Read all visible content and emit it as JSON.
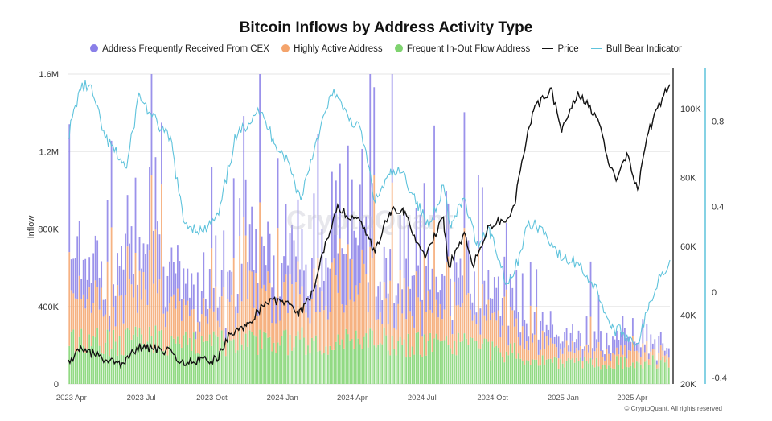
{
  "colors": {
    "cex": "#8a7fe8",
    "active": "#f4a46c",
    "inout": "#7fd36f",
    "price": "#111111",
    "bull_bear": "#5fc3dc",
    "grid": "#e6e6e6"
  },
  "footer": "© CryptoQuant. All rights reserved",
  "watermark": "CryptoQuant",
  "chart_data": {
    "type": "bar",
    "title": "Bitcoin Inflows by Address Activity Type",
    "ylabel": "Inflow",
    "ylim": [
      0,
      1600000
    ],
    "y_ticks": [
      "0",
      "400K",
      "800K",
      "1.2M",
      "1.6M"
    ],
    "price_ticks": [
      "20K",
      "40K",
      "60K",
      "80K",
      "100K"
    ],
    "price_ylim": [
      20000,
      110000
    ],
    "bb_ticks": [
      "-0.4",
      "0",
      "0.4",
      "0.8"
    ],
    "bb_ylim": [
      -0.43,
      1.02
    ],
    "x_ticks": [
      "2023 Apr",
      "2023 Jul",
      "2023 Oct",
      "2024 Jan",
      "2024 Apr",
      "2024 Jul",
      "2024 Oct",
      "2025 Jan",
      "2025 Apr"
    ],
    "x_range": [
      "2023-03-28",
      "2025-05-20"
    ],
    "legend_position": "top",
    "grid": true,
    "series": [
      {
        "name": "Address Frequently Received From CEX",
        "kind": "bar-stack",
        "dates": [
          "2023-04",
          "2023-05",
          "2023-06",
          "2023-07",
          "2023-08",
          "2023-09",
          "2023-10",
          "2023-11",
          "2023-12",
          "2024-01",
          "2024-02",
          "2024-03",
          "2024-04",
          "2024-05",
          "2024-06",
          "2024-07",
          "2024-08",
          "2024-09",
          "2024-10",
          "2024-11",
          "2024-12",
          "2025-01",
          "2025-02",
          "2025-03",
          "2025-04",
          "2025-05"
        ],
        "values": [
          190000,
          180000,
          210000,
          230000,
          160000,
          140000,
          150000,
          190000,
          230000,
          220000,
          200000,
          300000,
          280000,
          250000,
          220000,
          230000,
          200000,
          170000,
          130000,
          90000,
          80000,
          70000,
          70000,
          60000,
          60000,
          50000
        ]
      },
      {
        "name": "Highly Active Address",
        "kind": "bar-stack",
        "dates": [
          "2023-04",
          "2023-05",
          "2023-06",
          "2023-07",
          "2023-08",
          "2023-09",
          "2023-10",
          "2023-11",
          "2023-12",
          "2024-01",
          "2024-02",
          "2024-03",
          "2024-04",
          "2024-05",
          "2024-06",
          "2024-07",
          "2024-08",
          "2024-09",
          "2024-10",
          "2024-11",
          "2024-12",
          "2025-01",
          "2025-02",
          "2025-03",
          "2025-04",
          "2025-05"
        ],
        "values": [
          210000,
          200000,
          240000,
          250000,
          170000,
          150000,
          160000,
          200000,
          230000,
          220000,
          210000,
          300000,
          270000,
          250000,
          220000,
          230000,
          200000,
          170000,
          130000,
          80000,
          70000,
          60000,
          60000,
          50000,
          60000,
          50000
        ]
      },
      {
        "name": "Frequent In-Out Flow Address",
        "kind": "bar-stack",
        "dates": [
          "2023-04",
          "2023-05",
          "2023-06",
          "2023-07",
          "2023-08",
          "2023-09",
          "2023-10",
          "2023-11",
          "2023-12",
          "2024-01",
          "2024-02",
          "2024-03",
          "2024-04",
          "2024-05",
          "2024-06",
          "2024-07",
          "2024-08",
          "2024-09",
          "2024-10",
          "2024-11",
          "2024-12",
          "2025-01",
          "2025-02",
          "2025-03",
          "2025-04",
          "2025-05"
        ],
        "values": [
          230000,
          220000,
          220000,
          230000,
          210000,
          210000,
          210000,
          220000,
          230000,
          220000,
          230000,
          230000,
          220000,
          220000,
          210000,
          210000,
          200000,
          190000,
          160000,
          130000,
          120000,
          110000,
          110000,
          110000,
          120000,
          110000
        ]
      },
      {
        "name": "Price",
        "kind": "line",
        "axis": "right-price",
        "points": [
          [
            "2023-03-28",
            27000
          ],
          [
            "2023-04-15",
            30000
          ],
          [
            "2023-05-15",
            27000
          ],
          [
            "2023-06-10",
            25800
          ],
          [
            "2023-06-25",
            30500
          ],
          [
            "2023-07-15",
            30300
          ],
          [
            "2023-08-10",
            29300
          ],
          [
            "2023-08-20",
            26000
          ],
          [
            "2023-09-15",
            26600
          ],
          [
            "2023-10-10",
            27200
          ],
          [
            "2023-10-25",
            34500
          ],
          [
            "2023-11-15",
            36800
          ],
          [
            "2023-12-10",
            43800
          ],
          [
            "2024-01-05",
            44000
          ],
          [
            "2024-01-22",
            39500
          ],
          [
            "2024-02-10",
            47000
          ],
          [
            "2024-02-28",
            62000
          ],
          [
            "2024-03-13",
            72000
          ],
          [
            "2024-03-25",
            69000
          ],
          [
            "2024-04-13",
            67000
          ],
          [
            "2024-05-01",
            58000
          ],
          [
            "2024-05-20",
            70000
          ],
          [
            "2024-06-06",
            71000
          ],
          [
            "2024-06-25",
            61000
          ],
          [
            "2024-07-05",
            56500
          ],
          [
            "2024-07-29",
            68500
          ],
          [
            "2024-08-05",
            54000
          ],
          [
            "2024-08-25",
            64000
          ],
          [
            "2024-09-06",
            54000
          ],
          [
            "2024-09-27",
            66000
          ],
          [
            "2024-10-20",
            68000
          ],
          [
            "2024-10-30",
            72000
          ],
          [
            "2024-11-12",
            88000
          ],
          [
            "2024-11-22",
            99000
          ],
          [
            "2024-12-17",
            106000
          ],
          [
            "2024-12-30",
            93000
          ],
          [
            "2025-01-20",
            105000
          ],
          [
            "2025-02-15",
            97000
          ],
          [
            "2025-03-01",
            84000
          ],
          [
            "2025-03-11",
            79000
          ],
          [
            "2025-03-25",
            87000
          ],
          [
            "2025-04-08",
            76500
          ],
          [
            "2025-04-22",
            93000
          ],
          [
            "2025-05-10",
            103000
          ],
          [
            "2025-05-20",
            107000
          ]
        ]
      },
      {
        "name": "Bull Bear Indicator",
        "kind": "line",
        "axis": "right-bb",
        "points": [
          [
            "2023-03-28",
            0.72
          ],
          [
            "2023-04-12",
            0.95
          ],
          [
            "2023-04-25",
            0.97
          ],
          [
            "2023-05-15",
            0.72
          ],
          [
            "2023-06-12",
            0.58
          ],
          [
            "2023-06-28",
            0.93
          ],
          [
            "2023-07-15",
            0.82
          ],
          [
            "2023-08-10",
            0.7
          ],
          [
            "2023-08-25",
            0.33
          ],
          [
            "2023-09-20",
            0.28
          ],
          [
            "2023-10-10",
            0.36
          ],
          [
            "2023-10-30",
            0.7
          ],
          [
            "2023-11-30",
            0.86
          ],
          [
            "2023-12-20",
            0.72
          ],
          [
            "2024-01-10",
            0.6
          ],
          [
            "2024-01-25",
            0.43
          ],
          [
            "2024-02-15",
            0.72
          ],
          [
            "2024-03-08",
            0.95
          ],
          [
            "2024-03-20",
            0.85
          ],
          [
            "2024-04-13",
            0.75
          ],
          [
            "2024-05-01",
            0.42
          ],
          [
            "2024-05-20",
            0.55
          ],
          [
            "2024-06-06",
            0.56
          ],
          [
            "2024-06-25",
            0.42
          ],
          [
            "2024-07-10",
            0.3
          ],
          [
            "2024-07-29",
            0.5
          ],
          [
            "2024-08-08",
            0.3
          ],
          [
            "2024-08-25",
            0.44
          ],
          [
            "2024-09-10",
            0.22
          ],
          [
            "2024-09-27",
            0.3
          ],
          [
            "2024-10-20",
            0.04
          ],
          [
            "2024-10-30",
            0.1
          ],
          [
            "2024-11-15",
            0.31
          ],
          [
            "2024-12-01",
            0.31
          ],
          [
            "2024-12-17",
            0.23
          ],
          [
            "2024-12-31",
            0.15
          ],
          [
            "2025-01-20",
            0.14
          ],
          [
            "2025-02-15",
            0.0
          ],
          [
            "2025-03-05",
            -0.17
          ],
          [
            "2025-03-20",
            -0.19
          ],
          [
            "2025-04-08",
            -0.24
          ],
          [
            "2025-04-22",
            -0.08
          ],
          [
            "2025-05-05",
            0.06
          ],
          [
            "2025-05-20",
            0.15
          ]
        ]
      }
    ]
  }
}
